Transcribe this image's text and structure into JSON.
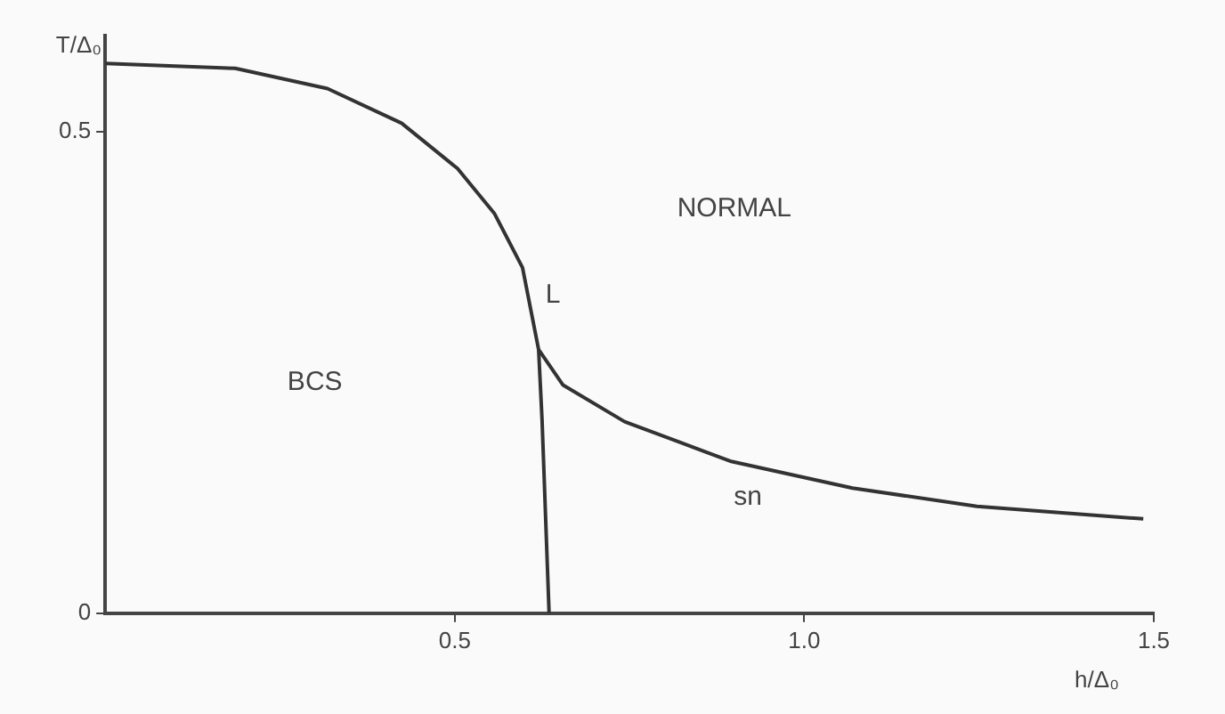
{
  "chart_data": {
    "type": "line",
    "xlabel": "h/Δ₀",
    "ylabel": "T/Δ₀",
    "series": [
      {
        "color": "#333333",
        "x": [
          0,
          0.186,
          0.318,
          0.424,
          0.504,
          0.557,
          0.597,
          0.62,
          0.655,
          0.743,
          0.894,
          1.069,
          1.247,
          1.485
        ],
        "values": [
          0.571,
          0.566,
          0.545,
          0.509,
          0.462,
          0.415,
          0.359,
          0.274,
          0.237,
          0.199,
          0.158,
          0.13,
          0.111,
          0.098
        ]
      },
      {
        "color": "#333333",
        "x": [
          0.62,
          0.625,
          0.63,
          0.635
        ],
        "values": [
          0.274,
          0.2,
          0.1,
          0
        ]
      }
    ],
    "xlim": [
      0,
      1.5
    ],
    "ylim": [
      0,
      0.6
    ],
    "xticks": [
      0.5,
      {
        "value": 1,
        "label": "1.0"
      },
      1.5
    ],
    "yticks": [
      0,
      0.5
    ],
    "annotations": [
      "BCS",
      "NORMAL",
      "L",
      "sn"
    ],
    "grid": false,
    "legend": false,
    "marker": "none",
    "line_style": "solid"
  }
}
